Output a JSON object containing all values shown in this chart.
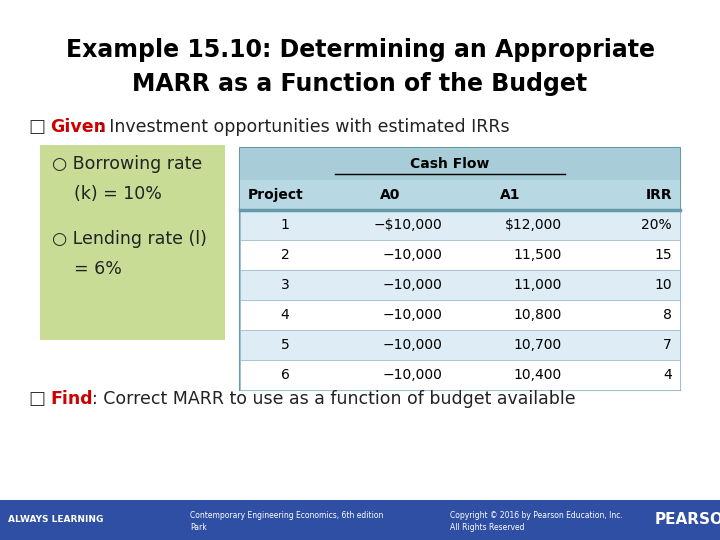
{
  "title_line1": "Example 15.10: Determining an Appropriate",
  "title_line2": "MARR as a Function of the Budget",
  "given_label": "Given",
  "given_text": ": Investment opportunities with estimated IRRs",
  "find_label": "Find",
  "find_text": ": Correct MARR to use as a function of budget available",
  "bullet_color": "#222222",
  "given_color": "#cc0000",
  "find_color": "#cc0000",
  "green_box_color": "#c8dc96",
  "bullet1_line1": "○ Borrowing rate",
  "bullet1_line2": "    (k) = 10%",
  "bullet2_line1": "○ Lending rate (l)",
  "bullet2_line2": "    = 6%",
  "table_header_bg": "#a8cdd8",
  "table_subhdr_bg": "#b8d8e4",
  "table_row_bg_odd": "#deedf5",
  "table_row_bg_even": "#ffffff",
  "table_border_outer": "#6699aa",
  "table_border_inner": "#99bbcc",
  "cashflow_header": "Cash Flow",
  "col_headers": [
    "Project",
    "A0",
    "A1",
    "IRR"
  ],
  "rows": [
    [
      "1",
      "−$10,000",
      "$12,000",
      "20%"
    ],
    [
      "2",
      "−10,000",
      "11,500",
      "15"
    ],
    [
      "3",
      "−10,000",
      "11,000",
      "10"
    ],
    [
      "4",
      "−10,000",
      "10,800",
      "8"
    ],
    [
      "5",
      "−10,000",
      "10,700",
      "7"
    ],
    [
      "6",
      "−10,000",
      "10,400",
      "4"
    ]
  ],
  "footer_bg": "#2e4fa3",
  "footer_text_color": "#ffffff",
  "footer_left": "ALWAYS LEARNING",
  "footer_center_line1": "Contemporary Engineering Economics, 6th edition",
  "footer_center_line2": "Park",
  "footer_right_line1": "Copyright © 2016 by Pearson Education, Inc.",
  "footer_right_line2": "All Rights Reserved",
  "footer_pearson": "PEARSON",
  "bg_color": "#ffffff",
  "title_color": "#000000"
}
